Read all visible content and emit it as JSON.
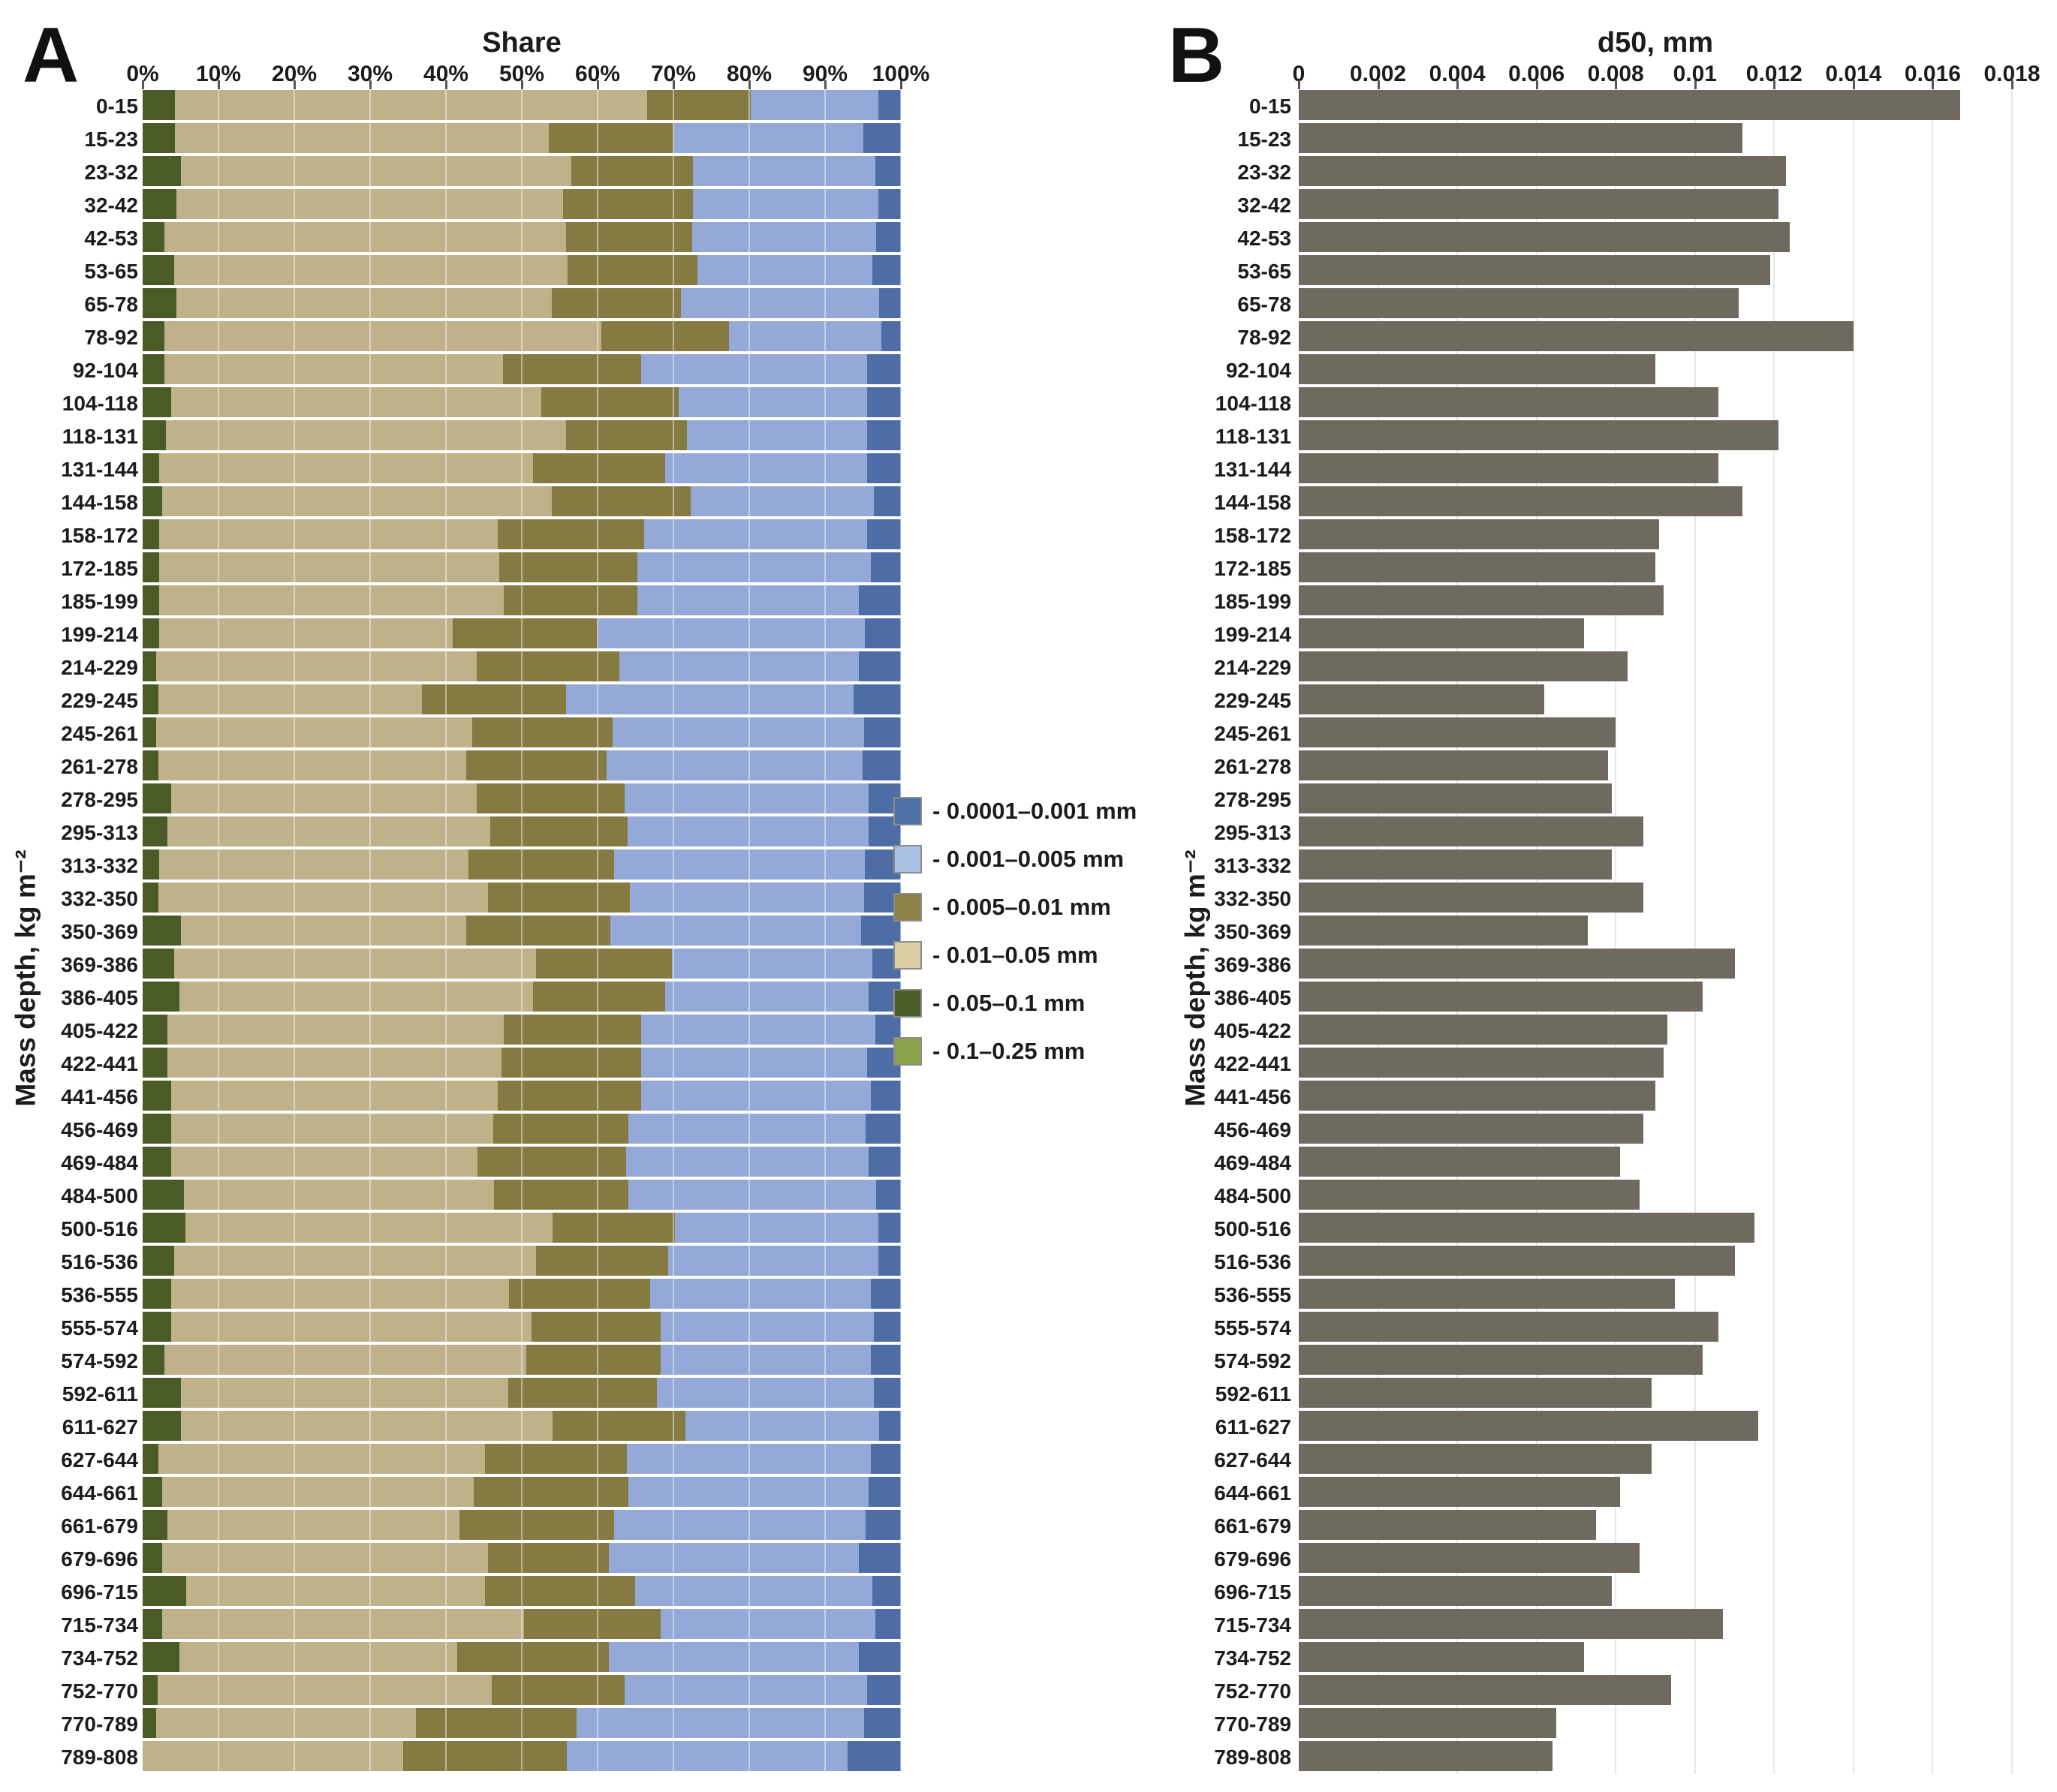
{
  "panels": {
    "a": {
      "letter": "A",
      "title": "Share",
      "y_axis_label": "Mass depth, kg m⁻²",
      "x_tick_labels": [
        "0%",
        "10%",
        "20%",
        "30%",
        "40%",
        "50%",
        "60%",
        "70%",
        "80%",
        "90%",
        "100%"
      ]
    },
    "b": {
      "letter": "B",
      "title": "d50, mm",
      "y_axis_label": "Mass depth, kg m⁻²",
      "x_tick_labels": [
        "0",
        "0.002",
        "0.004",
        "0.006",
        "0.008",
        "0.01",
        "0.012",
        "0.014",
        "0.016",
        "0.018"
      ]
    }
  },
  "legend": {
    "items": [
      {
        "label": "- 0.0001–0.001 mm",
        "color": "#4e6fa3"
      },
      {
        "label": "- 0.001–0.005 mm",
        "color": "#a9c0e4"
      },
      {
        "label": "- 0.005–0.01 mm",
        "color": "#8a8148"
      },
      {
        "label": "- 0.01–0.05 mm",
        "color": "#d9cda4"
      },
      {
        "label": "- 0.05–0.1 mm",
        "color": "#4b5c28"
      },
      {
        "label": "- 0.1–0.25 mm",
        "color": "#8ba44c"
      }
    ]
  },
  "chart_data": [
    {
      "type": "bar",
      "orientation": "horizontal",
      "stacked": true,
      "title": "Share",
      "xlabel": "",
      "ylabel": "Mass depth, kg m⁻²",
      "xlim": [
        0,
        100
      ],
      "x_tick_labels": [
        "0%",
        "10%",
        "20%",
        "30%",
        "40%",
        "50%",
        "60%",
        "70%",
        "80%",
        "90%",
        "100%"
      ],
      "grid": true,
      "legend_position": "right",
      "categories": [
        "0-15",
        "15-23",
        "23-32",
        "32-42",
        "42-53",
        "53-65",
        "65-78",
        "78-92",
        "92-104",
        "104-118",
        "118-131",
        "131-144",
        "144-158",
        "158-172",
        "172-185",
        "185-199",
        "199-214",
        "214-229",
        "229-245",
        "245-261",
        "261-278",
        "278-295",
        "295-313",
        "313-332",
        "332-350",
        "350-369",
        "369-386",
        "386-405",
        "405-422",
        "422-441",
        "441-456",
        "456-469",
        "469-484",
        "484-500",
        "500-516",
        "516-536",
        "536-555",
        "555-574",
        "574-592",
        "592-611",
        "611-627",
        "627-644",
        "644-661",
        "661-679",
        "679-696",
        "696-715",
        "715-734",
        "734-752",
        "752-770",
        "770-789",
        "789-808"
      ],
      "series_order": [
        "0.1–0.25 mm",
        "0.05–0.1 mm",
        "0.01–0.05 mm",
        "0.005–0.01 mm",
        "0.001–0.005 mm",
        "0.0001–0.001 mm"
      ],
      "series_colors": [
        "#8ba44c",
        "#4a5b28",
        "#bfb189",
        "#847a42",
        "#94a9d7",
        "#4e6da6"
      ],
      "shares_percent": [
        [
          0,
          4.3,
          62.2,
          13.7,
          16.8,
          3.0
        ],
        [
          0,
          4.3,
          49.3,
          16.4,
          25.1,
          4.9
        ],
        [
          0,
          5.0,
          51.5,
          16.1,
          24.0,
          3.4
        ],
        [
          0,
          4.5,
          50.9,
          17.2,
          24.4,
          3.0
        ],
        [
          0,
          2.9,
          52.9,
          16.7,
          24.2,
          3.3
        ],
        [
          0,
          4.2,
          51.8,
          17.2,
          23.0,
          3.8
        ],
        [
          0,
          4.5,
          49.5,
          17.0,
          26.1,
          2.9
        ],
        [
          0,
          2.9,
          57.6,
          16.8,
          20.1,
          2.6
        ],
        [
          0,
          2.9,
          44.6,
          18.2,
          29.8,
          4.5
        ],
        [
          0,
          3.8,
          48.8,
          18.1,
          24.8,
          4.5
        ],
        [
          0,
          3.1,
          52.7,
          16.0,
          23.7,
          4.5
        ],
        [
          0,
          2.2,
          49.3,
          17.4,
          26.6,
          4.5
        ],
        [
          0,
          2.6,
          51.4,
          18.3,
          24.1,
          3.6
        ],
        [
          0,
          2.2,
          44.6,
          19.3,
          29.4,
          4.5
        ],
        [
          0,
          2.2,
          44.8,
          18.2,
          30.8,
          4.0
        ],
        [
          0,
          2.2,
          45.4,
          17.6,
          29.3,
          5.5
        ],
        [
          0,
          2.2,
          38.7,
          19.1,
          35.2,
          4.8
        ],
        [
          0,
          1.8,
          42.3,
          18.8,
          31.6,
          5.5
        ],
        [
          0,
          2.1,
          34.7,
          19.0,
          38.0,
          6.2
        ],
        [
          0,
          1.8,
          41.7,
          18.5,
          33.2,
          4.8
        ],
        [
          0,
          2.1,
          40.6,
          18.5,
          33.8,
          5.0
        ],
        [
          0,
          3.8,
          40.3,
          19.5,
          32.1,
          4.3
        ],
        [
          0,
          3.3,
          42.5,
          18.2,
          31.7,
          4.3
        ],
        [
          0,
          2.2,
          40.8,
          19.2,
          33.0,
          4.8
        ],
        [
          0,
          2.1,
          43.4,
          18.8,
          30.9,
          4.8
        ],
        [
          0,
          5.0,
          37.7,
          19.0,
          33.1,
          5.2
        ],
        [
          0,
          4.2,
          47.7,
          17.9,
          26.4,
          3.8
        ],
        [
          0,
          4.9,
          46.6,
          17.4,
          26.8,
          4.3
        ],
        [
          0,
          3.3,
          44.3,
          18.1,
          30.9,
          3.4
        ],
        [
          0,
          3.3,
          44.0,
          18.4,
          29.8,
          4.5
        ],
        [
          0,
          3.8,
          43.0,
          18.9,
          30.3,
          4.0
        ],
        [
          0,
          3.8,
          42.4,
          17.9,
          31.2,
          4.7
        ],
        [
          0,
          3.8,
          40.4,
          19.6,
          31.9,
          4.3
        ],
        [
          0,
          5.4,
          40.9,
          17.8,
          32.6,
          3.3
        ],
        [
          0,
          5.6,
          48.5,
          16.1,
          26.8,
          3.0
        ],
        [
          0,
          4.2,
          47.7,
          17.4,
          27.7,
          3.0
        ],
        [
          0,
          3.8,
          44.5,
          18.6,
          29.1,
          4.0
        ],
        [
          0,
          3.8,
          47.5,
          17.0,
          28.1,
          3.6
        ],
        [
          0,
          2.9,
          47.7,
          17.7,
          27.7,
          4.0
        ],
        [
          0,
          5.0,
          43.2,
          19.6,
          28.6,
          3.6
        ],
        [
          0,
          5.0,
          49.1,
          17.5,
          25.5,
          2.9
        ],
        [
          0,
          2.1,
          43.0,
          18.8,
          32.1,
          4.0
        ],
        [
          0,
          2.6,
          41.1,
          20.4,
          31.6,
          4.3
        ],
        [
          0,
          3.3,
          38.5,
          20.4,
          33.1,
          4.7
        ],
        [
          0,
          2.6,
          42.9,
          16.0,
          33.0,
          5.5
        ],
        [
          0,
          5.7,
          39.4,
          19.9,
          31.2,
          3.8
        ],
        [
          0,
          2.6,
          47.7,
          18.0,
          28.3,
          3.4
        ],
        [
          0,
          4.9,
          36.6,
          20.0,
          33.0,
          5.5
        ],
        [
          0,
          2.0,
          44.0,
          17.6,
          31.9,
          4.5
        ],
        [
          0,
          1.8,
          34.2,
          21.2,
          38.0,
          4.8
        ],
        [
          0,
          0.0,
          34.4,
          21.5,
          37.1,
          7.0
        ]
      ]
    },
    {
      "type": "bar",
      "orientation": "horizontal",
      "title": "d50, mm",
      "xlabel": "",
      "ylabel": "Mass depth, kg m⁻²",
      "xlim": [
        0,
        0.018
      ],
      "x_tick_labels": [
        "0",
        "0.002",
        "0.004",
        "0.006",
        "0.008",
        "0.01",
        "0.012",
        "0.014",
        "0.016",
        "0.018"
      ],
      "grid": true,
      "bar_color": "#6e6a60",
      "categories": [
        "0-15",
        "15-23",
        "23-32",
        "32-42",
        "42-53",
        "53-65",
        "65-78",
        "78-92",
        "92-104",
        "104-118",
        "118-131",
        "131-144",
        "144-158",
        "158-172",
        "172-185",
        "185-199",
        "199-214",
        "214-229",
        "229-245",
        "245-261",
        "261-278",
        "278-295",
        "295-313",
        "313-332",
        "332-350",
        "350-369",
        "369-386",
        "386-405",
        "405-422",
        "422-441",
        "441-456",
        "456-469",
        "469-484",
        "484-500",
        "500-516",
        "516-536",
        "536-555",
        "555-574",
        "574-592",
        "592-611",
        "611-627",
        "627-644",
        "644-661",
        "661-679",
        "679-696",
        "696-715",
        "715-734",
        "734-752",
        "752-770",
        "770-789",
        "789-808"
      ],
      "values": [
        0.0167,
        0.0112,
        0.0123,
        0.0121,
        0.0124,
        0.0119,
        0.0111,
        0.014,
        0.009,
        0.0106,
        0.0121,
        0.0106,
        0.0112,
        0.0091,
        0.009,
        0.0092,
        0.0072,
        0.0083,
        0.0062,
        0.008,
        0.0078,
        0.0079,
        0.0087,
        0.0079,
        0.0087,
        0.0073,
        0.011,
        0.0102,
        0.0093,
        0.0092,
        0.009,
        0.0087,
        0.0081,
        0.0086,
        0.0115,
        0.011,
        0.0095,
        0.0106,
        0.0102,
        0.0089,
        0.0116,
        0.0089,
        0.0081,
        0.0075,
        0.0086,
        0.0079,
        0.0107,
        0.0072,
        0.0094,
        0.0065,
        0.0064
      ]
    }
  ]
}
